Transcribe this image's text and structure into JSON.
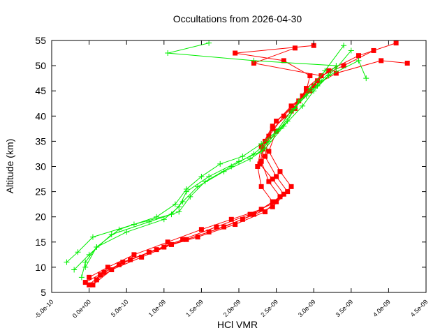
{
  "chart_data": {
    "type": "line",
    "title": "Occultations from 2026-04-30",
    "xlabel": "HCl VMR",
    "ylabel": "Altitude (km)",
    "xlim": [
      -5e-10,
      4.5e-09
    ],
    "ylim": [
      5,
      55
    ],
    "x_ticks": [
      -5e-10,
      0,
      5e-10,
      1e-09,
      1.5e-09,
      2e-09,
      2.5e-09,
      3e-09,
      3.5e-09,
      4e-09,
      4.5e-09
    ],
    "x_tick_labels": [
      "-5.0e-10",
      "0.0e+00",
      "5.0e-10",
      "1.0e-09",
      "1.5e-09",
      "2.0e-09",
      "2.5e-09",
      "3.0e-09",
      "3.5e-09",
      "4.0e-09",
      "4.5e-09"
    ],
    "y_ticks": [
      5,
      10,
      15,
      20,
      25,
      30,
      35,
      40,
      45,
      50,
      55
    ],
    "y_tick_labels": [
      "5",
      "10",
      "15",
      "20",
      "25",
      "30",
      "35",
      "40",
      "45",
      "50",
      "55"
    ],
    "grid": false,
    "legend": "none",
    "series": [
      {
        "color": "#ff0000",
        "marker": "square",
        "profiles": [
          {
            "x": [
              0.0,
              1.5e-10,
              4.5e-10,
              9e-10,
              1.3e-09,
              1.8e-09,
              2.2e-09,
              2.45e-09,
              2.3e-09,
              2.25e-09,
              2.3e-09,
              2.45e-09,
              2.7e-09,
              2.95e-09,
              3.1e-09,
              3.4e-09,
              3.8e-09
            ],
            "y": [
              6.5,
              8.5,
              11,
              13.5,
              15.5,
              18,
              20.5,
              23,
              26,
              30,
              34,
              38,
              42,
              45,
              48,
              50,
              53
            ]
          },
          {
            "x": [
              -5e-11,
              2e-10,
              5.5e-10,
              1e-09,
              1.45e-09,
              1.95e-09,
              2.35e-09,
              2.55e-09,
              2.4e-09,
              2.3e-09,
              2.35e-09,
              2.5e-09,
              2.8e-09,
              3e-09,
              3.3e-09,
              3.9e-09,
              4.25e-09
            ],
            "y": [
              7,
              9,
              11.5,
              14,
              16,
              18.5,
              21,
              24,
              27,
              31,
              35,
              39,
              43,
              46,
              48.5,
              51,
              50.5
            ]
          },
          {
            "x": [
              5e-11,
              3e-10,
              7e-10,
              1.1e-09,
              1.6e-09,
              2.05e-09,
              2.45e-09,
              2.65e-09,
              2.5e-09,
              2.35e-09,
              2.4e-09,
              2.6e-09,
              2.85e-09,
              3.05e-09,
              3.2e-09,
              3.6e-09,
              4.1e-09
            ],
            "y": [
              6.5,
              9.5,
              12,
              14.5,
              17,
              19.5,
              22,
              25,
              28,
              32,
              36,
              40,
              44,
              47,
              49,
              52,
              54.5
            ]
          },
          {
            "x": [
              1e-10,
              4e-10,
              8e-10,
              1.25e-09,
              1.7e-09,
              2.15e-09,
              2.5e-09,
              2.7e-09,
              2.55e-09,
              2.4e-09,
              2.5e-09,
              2.7e-09,
              2.9e-09,
              2.95e-09,
              2.6e-09,
              1.95e-09,
              3e-09
            ],
            "y": [
              7.5,
              10.5,
              13,
              15.5,
              18,
              20.5,
              23,
              26,
              29,
              33,
              37,
              41,
              45,
              48,
              51,
              52.5,
              54
            ]
          },
          {
            "x": [
              0.0,
              2.5e-10,
              6e-10,
              1.05e-09,
              1.5e-09,
              1.9e-09,
              2.3e-09,
              2.6e-09,
              2.45e-09,
              2.28e-09,
              2.32e-09,
              2.45e-09,
              2.75e-09,
              2.9e-09,
              3.1e-09,
              2.2e-09,
              2.75e-09
            ],
            "y": [
              8,
              10,
              12.5,
              15,
              17.5,
              19.5,
              21.5,
              24.5,
              27.5,
              30.5,
              33.5,
              37.5,
              41.5,
              45.5,
              48,
              50.5,
              53.5
            ]
          }
        ]
      },
      {
        "color": "#00ee00",
        "marker": "plus",
        "profiles": [
          {
            "x": [
              -1e-10,
              -5e-11,
              1e-10,
              5e-10,
              1e-09,
              1.2e-09,
              1.3e-09,
              1.6e-09,
              2e-09,
              2.3e-09,
              2.5e-09,
              2.7e-09,
              2.9e-09,
              3.1e-09,
              3.3e-09,
              2.2e-09,
              1.05e-09,
              1.6e-09
            ],
            "y": [
              8,
              11,
              14,
              17,
              19.5,
              22,
              25,
              28,
              31,
              33,
              37,
              41,
              44,
              47,
              50,
              51,
              52.5,
              54.5
            ]
          },
          {
            "x": [
              -3e-10,
              -1.5e-10,
              5e-11,
              6e-10,
              1.1e-09,
              1.25e-09,
              1.45e-09,
              1.8e-09,
              2.15e-09,
              2.35e-09,
              2.6e-09,
              2.85e-09,
              3e-09,
              3.2e-09,
              3.6e-09,
              3.7e-09
            ],
            "y": [
              11,
              13,
              16,
              18.5,
              20.5,
              23,
              26,
              29,
              31.5,
              33.5,
              38,
              42,
              45,
              48,
              51,
              47.5
            ]
          },
          {
            "x": [
              -2e-10,
              0.0,
              3e-10,
              8e-10,
              1.2e-09,
              1.35e-09,
              1.55e-09,
              1.9e-09,
              2.2e-09,
              2.4e-09,
              2.65e-09,
              2.8e-09,
              3.05e-09,
              3.3e-09,
              3.5e-09
            ],
            "y": [
              9.5,
              12.5,
              16.5,
              19,
              21,
              24,
              27,
              30,
              32.5,
              35,
              39,
              43,
              46,
              49.5,
              53
            ]
          },
          {
            "x": [
              -5e-11,
              1e-10,
              4e-10,
              9e-10,
              1.15e-09,
              1.3e-09,
              1.5e-09,
              1.75e-09,
              2.05e-09,
              2.3e-09,
              2.55e-09,
              2.75e-09,
              2.95e-09,
              3.15e-09,
              3.4e-09
            ],
            "y": [
              10,
              14,
              17.5,
              20,
              22.5,
              25.5,
              28,
              30.5,
              32,
              34.5,
              37.5,
              41.5,
              45.5,
              49,
              54
            ]
          }
        ]
      }
    ]
  }
}
